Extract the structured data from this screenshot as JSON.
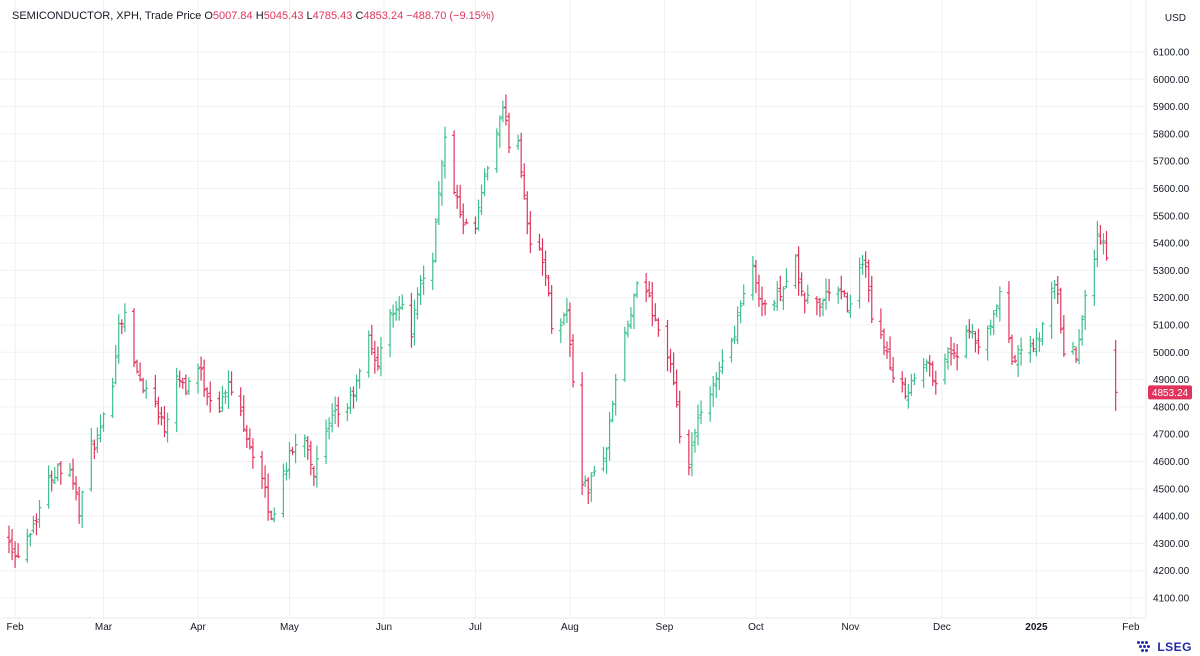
{
  "header": {
    "title": "SEMICONDUCTOR, XPH, Trade Price",
    "open_label": "O",
    "open": "5007.84",
    "high_label": "H",
    "high": "5045.43",
    "low_label": "L",
    "low": "4785.43",
    "close_label": "C",
    "close": "4853.24",
    "change": "−488.70 (−9.15%)"
  },
  "currency": "USD",
  "brand": "LSEG",
  "colors": {
    "up": "#3fbf8e",
    "down": "#e0345d",
    "grid": "#eef0f4",
    "text": "#131722",
    "last_price_bg": "#e0345d"
  },
  "last_price_label": "4853.24",
  "chart_data": {
    "type": "ohlc",
    "y_axis": {
      "min": 4050,
      "max": 6230,
      "ticks": [
        "4100.00",
        "4200.00",
        "4300.00",
        "4400.00",
        "4500.00",
        "4600.00",
        "4700.00",
        "4800.00",
        "4900.00",
        "5000.00",
        "5100.00",
        "5200.00",
        "5300.00",
        "5400.00",
        "5500.00",
        "5600.00",
        "5700.00",
        "5800.00",
        "5900.00",
        "6000.00",
        "6100.00"
      ]
    },
    "x_axis": {
      "start": "2024-01-30",
      "end": "2025-02-03",
      "ticks": [
        {
          "label": "Feb",
          "date": "2024-02-01"
        },
        {
          "label": "Mar",
          "date": "2024-03-01"
        },
        {
          "label": "Apr",
          "date": "2024-04-01"
        },
        {
          "label": "May",
          "date": "2024-05-01"
        },
        {
          "label": "Jun",
          "date": "2024-06-01"
        },
        {
          "label": "Jul",
          "date": "2024-07-01"
        },
        {
          "label": "Aug",
          "date": "2024-08-01"
        },
        {
          "label": "Sep",
          "date": "2024-09-01"
        },
        {
          "label": "Oct",
          "date": "2024-10-01"
        },
        {
          "label": "Nov",
          "date": "2024-11-01"
        },
        {
          "label": "Dec",
          "date": "2024-12-01"
        },
        {
          "label": "2025",
          "date": "2025-01-01",
          "bold": true
        },
        {
          "label": "Feb",
          "date": "2025-02-01"
        }
      ]
    },
    "anchors": [
      [
        "2024-01-30",
        4330
      ],
      [
        "2024-02-01",
        4250
      ],
      [
        "2024-02-05",
        4330
      ],
      [
        "2024-02-08",
        4400
      ],
      [
        "2024-02-12",
        4530
      ],
      [
        "2024-02-15",
        4580
      ],
      [
        "2024-02-19",
        4580
      ],
      [
        "2024-02-22",
        4420
      ],
      [
        "2024-02-26",
        4650
      ],
      [
        "2024-02-29",
        4700
      ],
      [
        "2024-03-04",
        4900
      ],
      [
        "2024-03-06",
        5100
      ],
      [
        "2024-03-08",
        5150
      ],
      [
        "2024-03-11",
        4950
      ],
      [
        "2024-03-14",
        4880
      ],
      [
        "2024-03-18",
        4820
      ],
      [
        "2024-03-21",
        4720
      ],
      [
        "2024-03-25",
        4930
      ],
      [
        "2024-03-28",
        4870
      ],
      [
        "2024-04-01",
        4950
      ],
      [
        "2024-04-04",
        4850
      ],
      [
        "2024-04-08",
        4800
      ],
      [
        "2024-04-11",
        4880
      ],
      [
        "2024-04-15",
        4780
      ],
      [
        "2024-04-18",
        4660
      ],
      [
        "2024-04-22",
        4530
      ],
      [
        "2024-04-25",
        4380
      ],
      [
        "2024-04-29",
        4560
      ],
      [
        "2024-05-02",
        4640
      ],
      [
        "2024-05-06",
        4700
      ],
      [
        "2024-05-09",
        4560
      ],
      [
        "2024-05-13",
        4700
      ],
      [
        "2024-05-16",
        4770
      ],
      [
        "2024-05-20",
        4800
      ],
      [
        "2024-05-23",
        4880
      ],
      [
        "2024-05-27",
        5050
      ],
      [
        "2024-05-30",
        4950
      ],
      [
        "2024-06-03",
        5150
      ],
      [
        "2024-06-06",
        5180
      ],
      [
        "2024-06-10",
        5080
      ],
      [
        "2024-06-13",
        5250
      ],
      [
        "2024-06-17",
        5350
      ],
      [
        "2024-06-19",
        5600
      ],
      [
        "2024-06-21",
        5770
      ],
      [
        "2024-06-24",
        5600
      ],
      [
        "2024-06-27",
        5450
      ],
      [
        "2024-07-01",
        5450
      ],
      [
        "2024-07-03",
        5580
      ],
      [
        "2024-07-05",
        5680
      ],
      [
        "2024-07-08",
        5800
      ],
      [
        "2024-07-10",
        5880
      ],
      [
        "2024-07-12",
        5770
      ],
      [
        "2024-07-15",
        5780
      ],
      [
        "2024-07-17",
        5580
      ],
      [
        "2024-07-19",
        5400
      ],
      [
        "2024-07-22",
        5360
      ],
      [
        "2024-07-24",
        5300
      ],
      [
        "2024-07-26",
        5100
      ],
      [
        "2024-07-29",
        5120
      ],
      [
        "2024-07-31",
        5150
      ],
      [
        "2024-08-02",
        4900
      ],
      [
        "2024-08-05",
        4530
      ],
      [
        "2024-08-07",
        4500
      ],
      [
        "2024-08-09",
        4560
      ],
      [
        "2024-08-13",
        4650
      ],
      [
        "2024-08-16",
        4900
      ],
      [
        "2024-08-20",
        5100
      ],
      [
        "2024-08-23",
        5230
      ],
      [
        "2024-08-26",
        5230
      ],
      [
        "2024-08-29",
        5120
      ],
      [
        "2024-09-03",
        4950
      ],
      [
        "2024-09-06",
        4700
      ],
      [
        "2024-09-09",
        4580
      ],
      [
        "2024-09-12",
        4750
      ],
      [
        "2024-09-16",
        4830
      ],
      [
        "2024-09-19",
        4950
      ],
      [
        "2024-09-23",
        5030
      ],
      [
        "2024-09-26",
        5180
      ],
      [
        "2024-09-30",
        5300
      ],
      [
        "2024-10-03",
        5180
      ],
      [
        "2024-10-07",
        5180
      ],
      [
        "2024-10-10",
        5250
      ],
      [
        "2024-10-14",
        5330
      ],
      [
        "2024-10-16",
        5200
      ],
      [
        "2024-10-18",
        5200
      ],
      [
        "2024-10-22",
        5170
      ],
      [
        "2024-10-25",
        5230
      ],
      [
        "2024-10-29",
        5210
      ],
      [
        "2024-11-01",
        5160
      ],
      [
        "2024-11-04",
        5330
      ],
      [
        "2024-11-06",
        5300
      ],
      [
        "2024-11-08",
        5110
      ],
      [
        "2024-11-12",
        5040
      ],
      [
        "2024-11-15",
        4890
      ],
      [
        "2024-11-19",
        4860
      ],
      [
        "2024-11-22",
        4900
      ],
      [
        "2024-11-26",
        4960
      ],
      [
        "2024-11-29",
        4900
      ],
      [
        "2024-12-03",
        5000
      ],
      [
        "2024-12-06",
        5000
      ],
      [
        "2024-12-10",
        5070
      ],
      [
        "2024-12-13",
        5020
      ],
      [
        "2024-12-17",
        5080
      ],
      [
        "2024-12-20",
        5210
      ],
      [
        "2024-12-24",
        4970
      ],
      [
        "2024-12-27",
        5000
      ],
      [
        "2025-01-02",
        5040
      ],
      [
        "2025-01-06",
        5250
      ],
      [
        "2025-01-08",
        5200
      ],
      [
        "2025-01-10",
        5000
      ],
      [
        "2025-01-14",
        5000
      ],
      [
        "2025-01-17",
        5200
      ],
      [
        "2025-01-21",
        5420
      ],
      [
        "2025-01-23",
        5400
      ],
      [
        "2025-01-24",
        5342
      ],
      [
        "2025-01-27",
        4853
      ]
    ],
    "last_bar": {
      "date": "2025-01-27",
      "open": 5007.84,
      "high": 5045.43,
      "low": 4785.43,
      "close": 4853.24
    },
    "grid": true
  }
}
